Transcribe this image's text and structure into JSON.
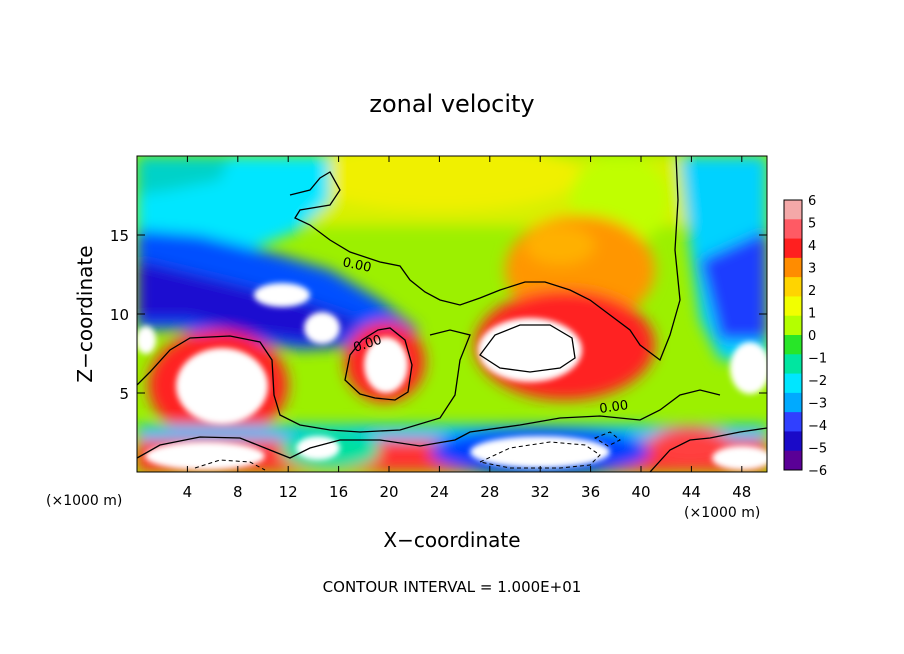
{
  "chart_data": {
    "type": "heatmap",
    "title": "zonal velocity",
    "xlabel": "X−coordinate",
    "ylabel": "Z−coordinate",
    "x_unit_left": "(×1000 m)",
    "x_unit_right": "(×1000 m)",
    "footer": "CONTOUR INTERVAL = 1.000E+01",
    "xlim": [
      0,
      50
    ],
    "ylim": [
      0,
      20
    ],
    "x_ticks": [
      4,
      8,
      12,
      16,
      20,
      24,
      28,
      32,
      36,
      40,
      44,
      48
    ],
    "y_ticks": [
      5,
      10,
      15
    ],
    "colorbar": {
      "levels": [
        6,
        5,
        4,
        3,
        2,
        1,
        0,
        -1,
        -2,
        -3,
        -4,
        -5,
        -6
      ],
      "colors": [
        "#f4a8a8",
        "#ff5a64",
        "#ff1f1f",
        "#ff8c00",
        "#ffd400",
        "#f2ff00",
        "#b4ff00",
        "#28e628",
        "#00e6a0",
        "#00e6ff",
        "#00aaff",
        "#3040ff",
        "#1a0ac8",
        "#5a0096"
      ]
    },
    "contour_labels": [
      {
        "text": "0.00",
        "x": 17.5,
        "z": 13.2
      },
      {
        "text": "0.00",
        "x": 18.5,
        "z": 8.4
      },
      {
        "text": "0.00",
        "x": 38.0,
        "z": 4.2
      }
    ],
    "grid": false
  }
}
